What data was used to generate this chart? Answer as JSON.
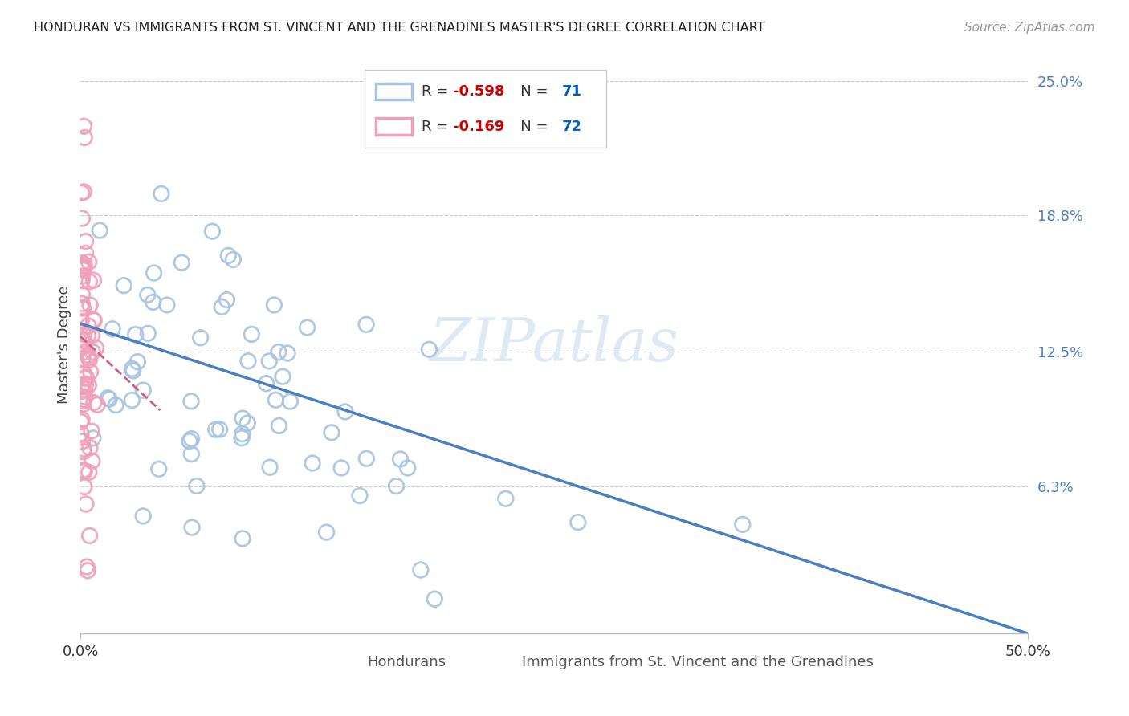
{
  "title": "HONDURAN VS IMMIGRANTS FROM ST. VINCENT AND THE GRENADINES MASTER'S DEGREE CORRELATION CHART",
  "source": "Source: ZipAtlas.com",
  "ylabel": "Master's Degree",
  "right_yticks": [
    "25.0%",
    "18.8%",
    "12.5%",
    "6.3%"
  ],
  "right_ytick_vals": [
    0.25,
    0.188,
    0.125,
    0.063
  ],
  "xlim": [
    0.0,
    0.5
  ],
  "ylim_min": -0.005,
  "ylim_max": 0.262,
  "blue_color": "#a8c4e0",
  "pink_color": "#f0a0b8",
  "blue_line_color": "#4a80c0",
  "pink_line_color": "#d06080",
  "watermark_color": "#d0e0f0",
  "grid_color": "#cccccc",
  "title_color": "#222222",
  "source_color": "#999999",
  "tick_label_color": "#5080c0",
  "ylabel_color": "#444444",
  "bottom_label_color": "#555555",
  "legend_r_color": "#cc0000",
  "legend_n_color": "#0060c0",
  "legend_text_color": "#333333"
}
